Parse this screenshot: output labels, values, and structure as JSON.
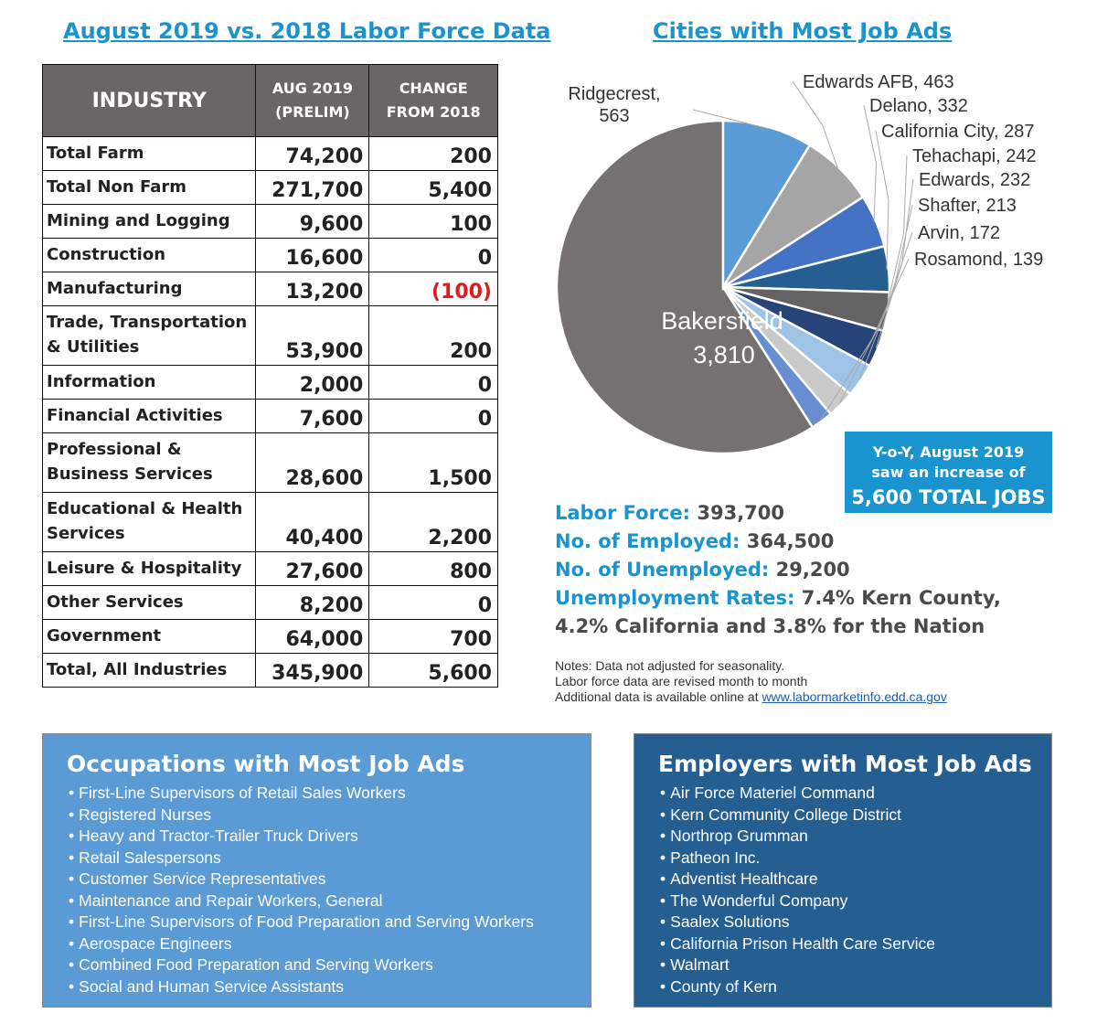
{
  "left_title": "August 2019 vs. 2018 Labor Force Data",
  "right_title": "Cities with Most Job Ads",
  "table": {
    "headers": {
      "industry": "INDUSTRY",
      "aug_line1": "AUG 2019",
      "aug_line2": "(PRELIM)",
      "chg_line1": "CHANGE",
      "chg_line2": "FROM 2018"
    },
    "rows": [
      {
        "name": "Total Farm",
        "aug": "74,200",
        "change": "200"
      },
      {
        "name": "Total Non Farm",
        "aug": "271,700",
        "change": "5,400"
      },
      {
        "name": "Mining and Logging",
        "aug": "9,600",
        "change": "100"
      },
      {
        "name": "Construction",
        "aug": "16,600",
        "change": "0"
      },
      {
        "name": "Manufacturing",
        "aug": "13,200",
        "change": "(100)",
        "negative": true
      },
      {
        "name": "Trade, Transportation & Utilities",
        "aug": "53,900",
        "change": "200",
        "tall": true
      },
      {
        "name": "Information",
        "aug": "2,000",
        "change": "0"
      },
      {
        "name": "Financial Activities",
        "aug": "7,600",
        "change": "0"
      },
      {
        "name": "Professional & Business Services",
        "aug": "28,600",
        "change": "1,500",
        "tall": true
      },
      {
        "name": "Educational & Health Services",
        "aug": "40,400",
        "change": "2,200",
        "tall": true
      },
      {
        "name": "Leisure & Hospitality",
        "aug": "27,600",
        "change": "800"
      },
      {
        "name": "Other Services",
        "aug": "8,200",
        "change": "0"
      },
      {
        "name": "Government",
        "aug": "64,000",
        "change": "700"
      },
      {
        "name": "Total, All Industries",
        "aug": "345,900",
        "change": "5,600"
      }
    ]
  },
  "chart_data": {
    "type": "pie",
    "title": "Cities with Most Job Ads",
    "slices": [
      {
        "label": "Bakersfield",
        "value": 3810,
        "display": "3,810",
        "color": "#767171"
      },
      {
        "label": "Ridgecrest",
        "value": 563,
        "display": "563",
        "color": "#5b9bd5"
      },
      {
        "label": "Edwards AFB",
        "value": 463,
        "display": "463",
        "color": "#a5a5a5"
      },
      {
        "label": "Delano",
        "value": 332,
        "display": "332",
        "color": "#4472c4"
      },
      {
        "label": "California City",
        "value": 287,
        "display": "287",
        "color": "#255e91"
      },
      {
        "label": "Tehachapi",
        "value": 242,
        "display": "242",
        "color": "#636363"
      },
      {
        "label": "Edwards",
        "value": 232,
        "display": "232",
        "color": "#264478"
      },
      {
        "label": "Shafter",
        "value": 213,
        "display": "213",
        "color": "#9dc3e6"
      },
      {
        "label": "Arvin",
        "value": 172,
        "display": "172",
        "color": "#c9c9c9"
      },
      {
        "label": "Rosamond",
        "value": 139,
        "display": "139",
        "color": "#698ed0"
      }
    ]
  },
  "callout": {
    "line1": "Y-o-Y, August 2019",
    "line2": "saw an increase of",
    "line3": "5,600 TOTAL JOBS"
  },
  "stats": {
    "labor_force_label": "Labor Force:",
    "labor_force_value": "393,700",
    "employed_label": "No. of Employed:",
    "employed_value": "364,500",
    "unemployed_label": "No. of Unemployed:",
    "unemployed_value": "29,200",
    "rates_label": "Unemployment Rates:",
    "rates_value1": "7.4% Kern County,",
    "rates_value2": "4.2% California and 3.8% for the Nation"
  },
  "notes": {
    "line1": "Notes: Data not adjusted for seasonality.",
    "line2": "Labor force data are revised month to month",
    "line3": "Additional data is available online at",
    "link": "www.labormarketinfo.edd.ca.gov"
  },
  "occupations": {
    "title": "Occupations with Most Job Ads",
    "items": [
      "First-Line Supervisors of Retail Sales Workers",
      "Registered Nurses",
      "Heavy and Tractor-Trailer Truck Drivers",
      "Retail Salespersons",
      "Customer Service Representatives",
      "Maintenance and Repair Workers, General",
      "First-Line Supervisors of Food Preparation and Serving Workers",
      "Aerospace Engineers",
      "Combined Food Preparation and Serving Workers",
      "Social and Human Service Assistants"
    ]
  },
  "employers": {
    "title": "Employers with Most Job Ads",
    "items": [
      "Air Force Materiel Command",
      "Kern Community College District",
      "Northrop Grumman",
      "Patheon Inc.",
      "Adventist Healthcare",
      "The Wonderful Company",
      "Saalex Solutions",
      "California Prison Health Care Service",
      "Walmart",
      "County of Kern"
    ]
  }
}
